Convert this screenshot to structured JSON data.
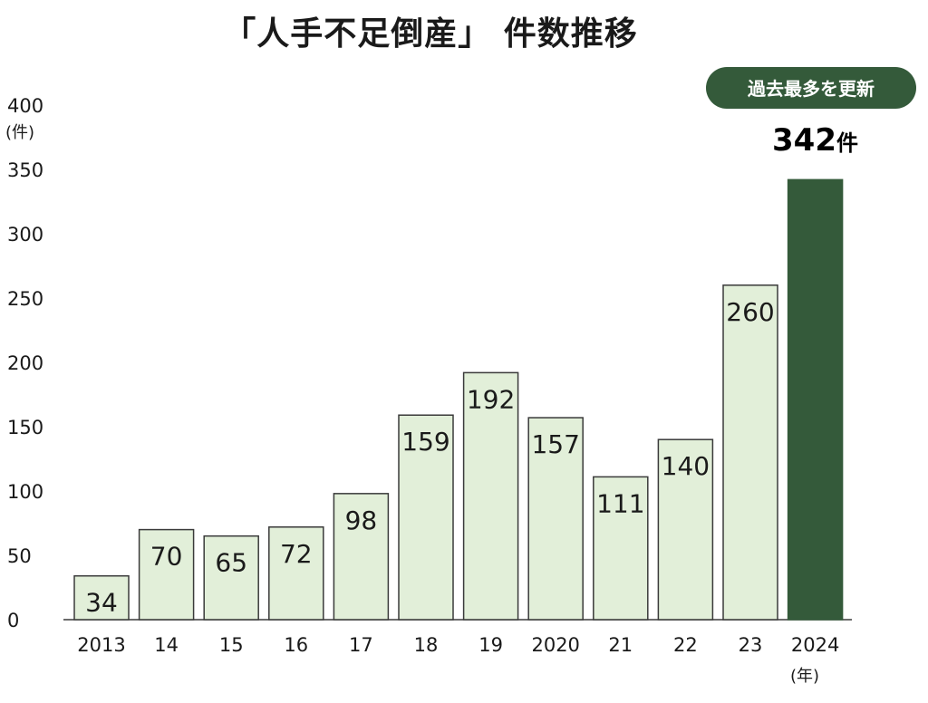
{
  "chart_data": {
    "type": "bar",
    "title": "「人手不足倒産」 件数推移",
    "categories": [
      "2013",
      "14",
      "15",
      "16",
      "17",
      "18",
      "19",
      "2020",
      "21",
      "22",
      "23",
      "2024"
    ],
    "values": [
      34,
      70,
      65,
      72,
      98,
      159,
      192,
      157,
      111,
      140,
      260,
      342
    ],
    "value_labels": [
      "34",
      "70",
      "65",
      "72",
      "98",
      "159",
      "192",
      "157",
      "111",
      "140",
      "260",
      ""
    ],
    "ylim": [
      0,
      400
    ],
    "yticks": [
      0,
      50,
      100,
      150,
      200,
      250,
      300,
      350,
      400
    ],
    "ylabel": "(件)",
    "xlabel": "(年)",
    "grid": false,
    "annotation": {
      "badge": "過去最多を更新",
      "value": "342",
      "unit": "件"
    },
    "colors": {
      "bar_fill": "#e2efd9",
      "bar_stroke": "#3a3a3a",
      "highlight": "#345a3a",
      "badge_bg": "#345a3a"
    }
  }
}
